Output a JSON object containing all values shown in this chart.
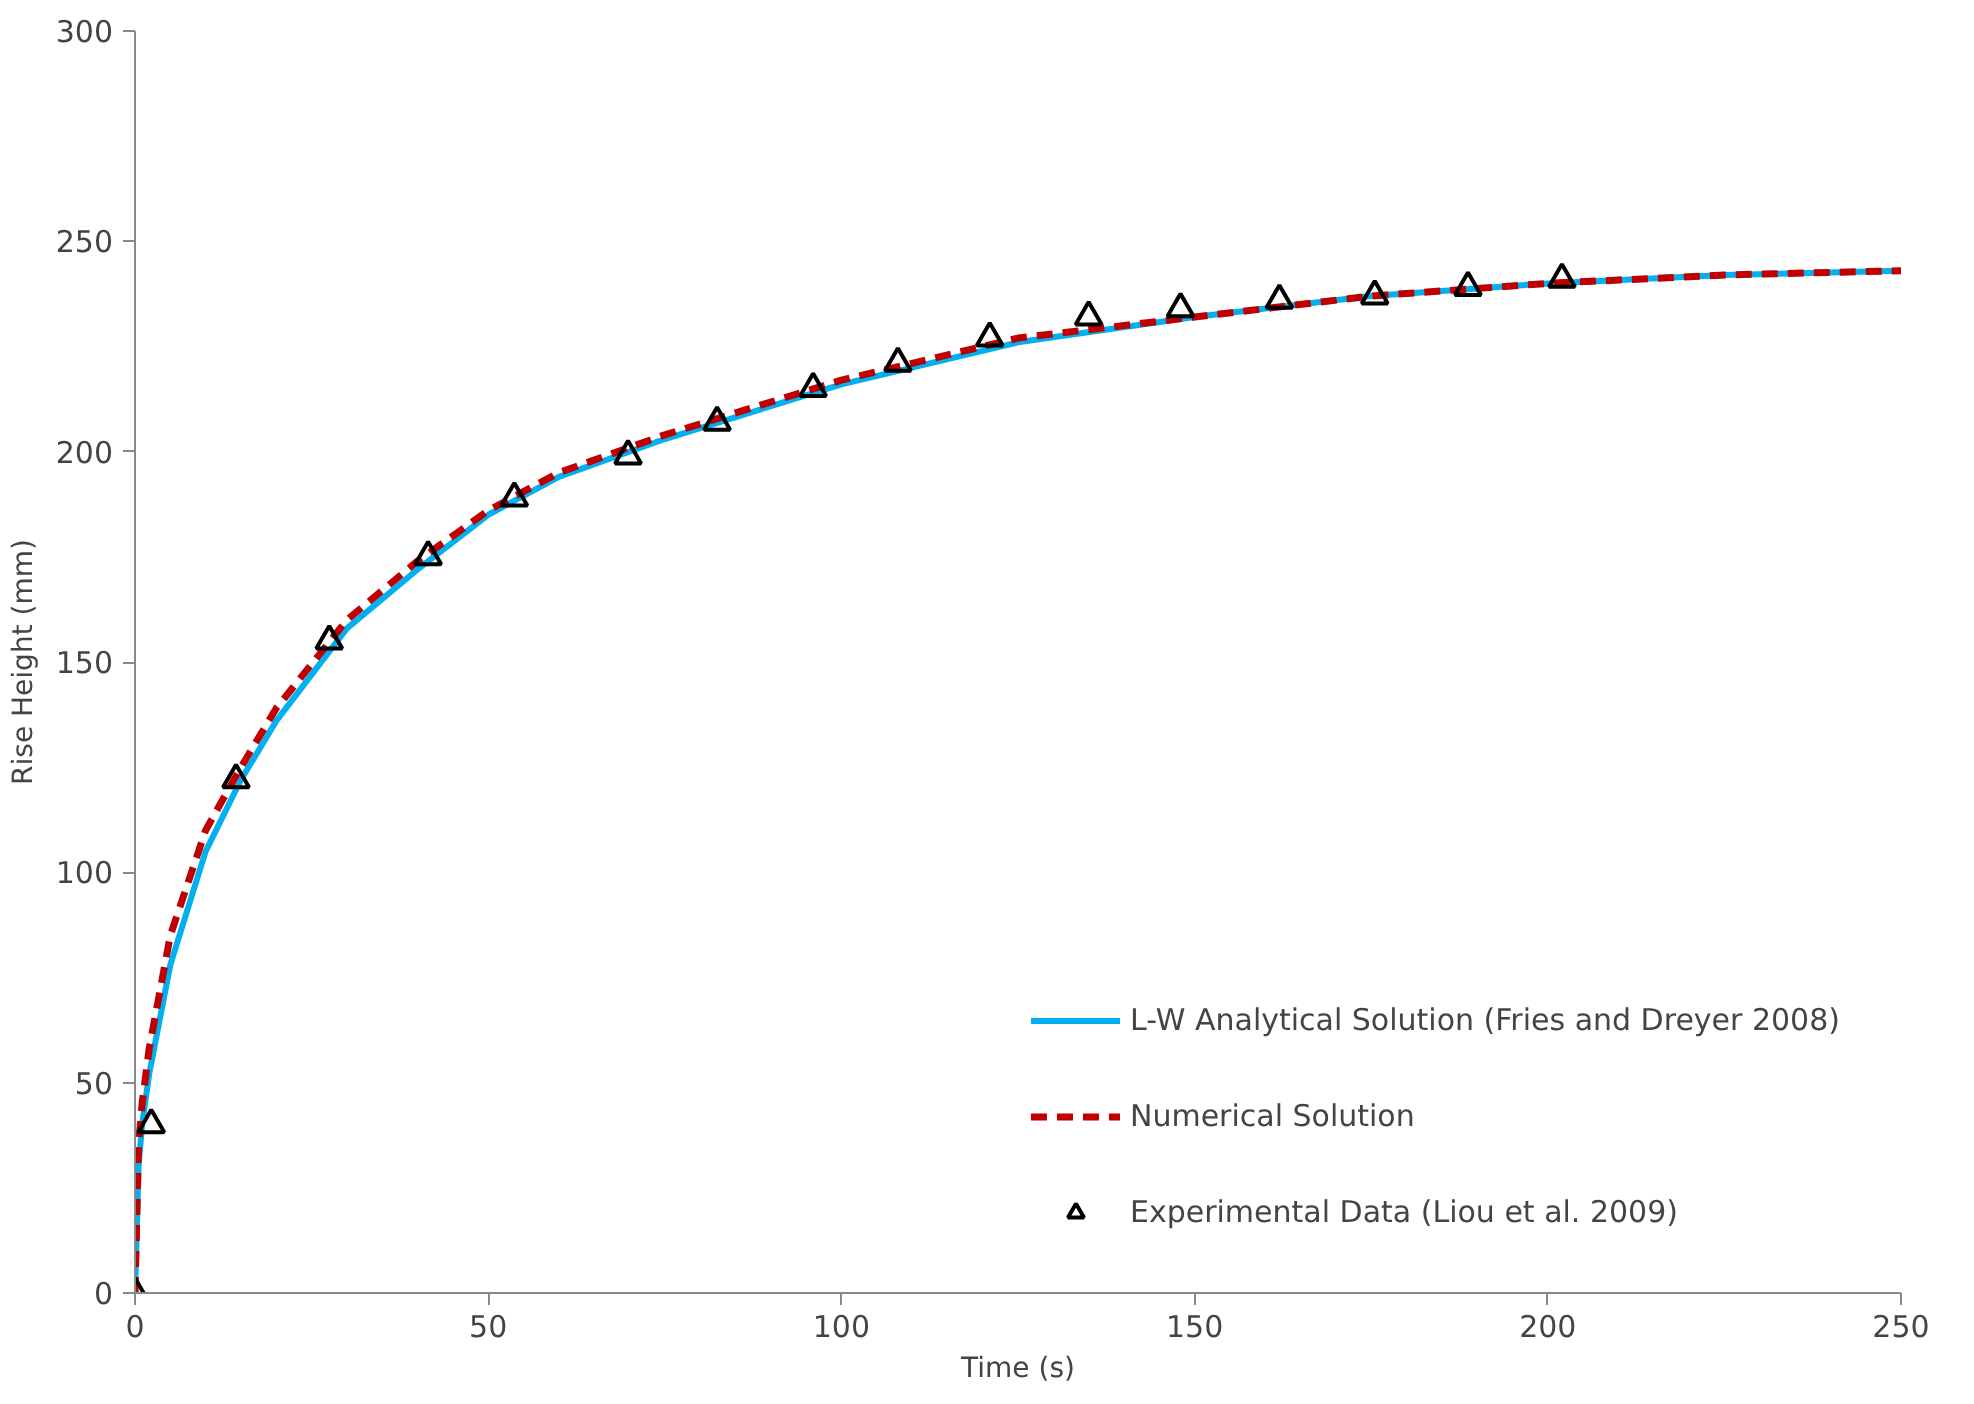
{
  "chart_data": {
    "type": "line",
    "xlabel": "Time (s)",
    "ylabel": "Rise Height (mm)",
    "xlim": [
      0,
      250
    ],
    "xticks": [
      0,
      50,
      100,
      150,
      200,
      250
    ],
    "ylim": [
      0,
      300
    ],
    "yticks": [
      0,
      50,
      100,
      150,
      200,
      250,
      300
    ],
    "grid": false,
    "legend": "bottom right",
    "series": [
      {
        "name": "L-W Analytical Solution (Fries and Dreyer 2008)",
        "line_style": "solid",
        "color": "#00b0f0",
        "x": [
          0,
          0.5,
          1,
          2,
          5,
          10,
          15,
          20,
          30,
          40,
          50,
          60,
          75,
          100,
          125,
          150,
          175,
          200,
          225,
          250
        ],
        "values": [
          0,
          30,
          40,
          52,
          78,
          105,
          122,
          136,
          158,
          172,
          185,
          194,
          203,
          216,
          226,
          232,
          237,
          240,
          242,
          243
        ]
      },
      {
        "name": "Numerical Solution",
        "line_style": "dashed",
        "color": "#c00000",
        "x": [
          0,
          0.5,
          1,
          2,
          5,
          10,
          15,
          20,
          30,
          40,
          50,
          60,
          75,
          100,
          125,
          150,
          175,
          200,
          225,
          250
        ],
        "values": [
          0,
          35,
          45,
          58,
          85,
          110,
          125,
          139,
          160,
          174,
          186,
          195,
          204,
          217,
          227,
          232,
          237,
          240,
          242,
          243
        ]
      },
      {
        "name": "Experimental Data (Liou et al. 2009)",
        "type": "scatter",
        "marker": "triangle",
        "color": "#000000",
        "x": [
          0,
          2.3,
          14.3,
          27.5,
          41.5,
          53.7,
          69.8,
          82.4,
          96,
          108,
          121,
          135,
          148,
          162,
          175.5,
          188.7,
          202
        ],
        "values": [
          0,
          40,
          122,
          155,
          175,
          189,
          199,
          207,
          215,
          221,
          227,
          232,
          234,
          236,
          237,
          239,
          241
        ]
      }
    ]
  }
}
